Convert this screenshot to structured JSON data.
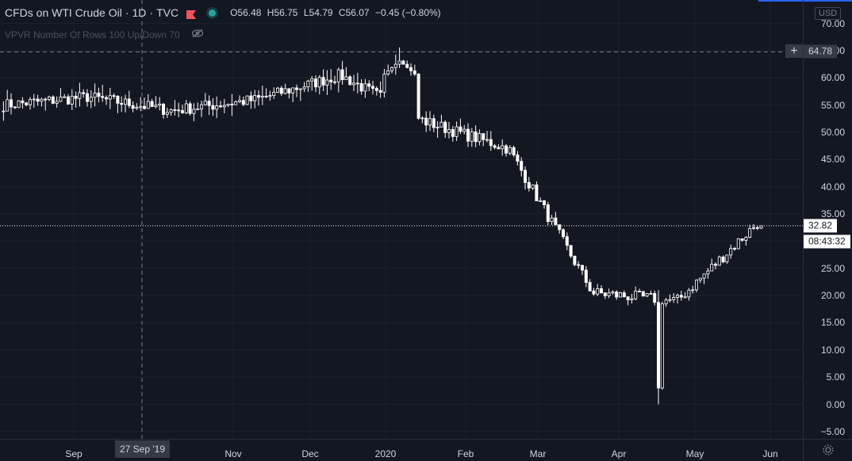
{
  "legend": {
    "symbol": "CFDs on WTI Crude Oil",
    "interval": "1D",
    "exchange": "TVC",
    "flag_icon": "red-flag-icon",
    "status_dot_color": "#26a69a",
    "open_label": "O",
    "open": "56.48",
    "high_label": "H",
    "high": "56.75",
    "low_label": "L",
    "low": "54.79",
    "close_label": "C",
    "close": "56.07",
    "change": "−0.45 (−0.80%)",
    "indicator": "VPVR Number Of Rows 100 Up/Down 70",
    "indicator_visibility_icon": "eye-off-icon"
  },
  "price_axis": {
    "currency": "USD",
    "ticks": [
      "70.00",
      "65.00",
      "60.00",
      "55.00",
      "50.00",
      "45.00",
      "40.00",
      "35.00",
      "30.00",
      "25.00",
      "20.00",
      "15.00",
      "10.00",
      "5.00",
      "0.00",
      "−5.00"
    ],
    "crosshair_price": "64.78",
    "last_price": "32.82",
    "countdown": "08:43:32"
  },
  "time_axis": {
    "labels": [
      "Sep",
      "Nov",
      "Dec",
      "2020",
      "Feb",
      "Mar",
      "Apr",
      "May",
      "Jun"
    ],
    "crosshair_date": "27 Sep '19"
  },
  "settings_icon": "gear-icon",
  "colors": {
    "background": "#131722",
    "candles": "#ffffff",
    "grid": "#1e222d",
    "axis_text": "#d1d4dc"
  },
  "chart_data": {
    "type": "candlestick",
    "title": "CFDs on WTI Crude Oil",
    "ylabel": "USD",
    "ylim": [
      -7,
      73
    ],
    "monthly_anchors": [
      {
        "month": "Aug 2019",
        "close": 55.0
      },
      {
        "month": "Sep 2019",
        "close": 56.5
      },
      {
        "month": "Oct 2019",
        "close": 54.0
      },
      {
        "month": "Nov 2019",
        "close": 56.0
      },
      {
        "month": "Dec 2019",
        "close": 60.5
      },
      {
        "month": "Jan 2020",
        "close": 52.0
      },
      {
        "month": "Feb 2020",
        "close": 47.0
      },
      {
        "month": "Mar 2020",
        "close": 20.5
      },
      {
        "month": "Apr 2020",
        "close": 19.0
      },
      {
        "month": "May 2020",
        "close": 34.0
      }
    ],
    "notable": {
      "max_high": 65.6,
      "min_low": 0.0,
      "last_close": 32.82
    }
  }
}
